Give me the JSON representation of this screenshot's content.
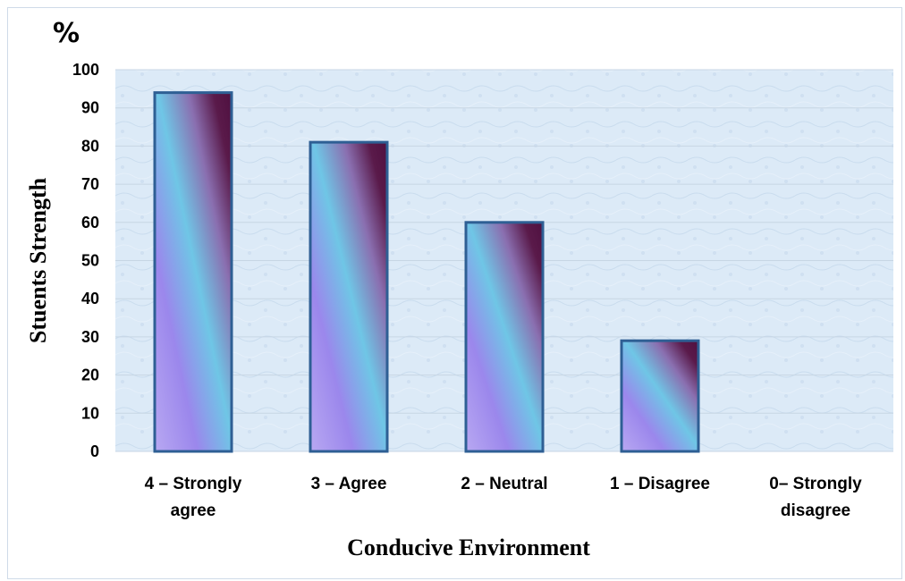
{
  "chart_data": {
    "type": "bar",
    "unit_label": "%",
    "title": "",
    "xlabel": "Conducive Environment",
    "ylabel": "Stuents Strength",
    "ylim": [
      0,
      100
    ],
    "yticks": [
      0,
      10,
      20,
      30,
      40,
      50,
      60,
      70,
      80,
      90,
      100
    ],
    "grid": true,
    "legend": "none",
    "categories": [
      [
        "4 – Strongly",
        "agree"
      ],
      [
        "3 – Agree"
      ],
      [
        "2 – Neutral"
      ],
      [
        "1 – Disagree"
      ],
      [
        "0– Strongly",
        "disagree"
      ]
    ],
    "values": [
      94,
      81,
      60,
      29,
      0
    ],
    "colors": {
      "plot_background": "#dceaf7",
      "bar_outline": "#2e5f94",
      "bar_light": "#6fc6e6",
      "bar_violet": "#9b87ec",
      "bar_dark": "#4f1040",
      "gridline": "#c7d6e4"
    }
  }
}
